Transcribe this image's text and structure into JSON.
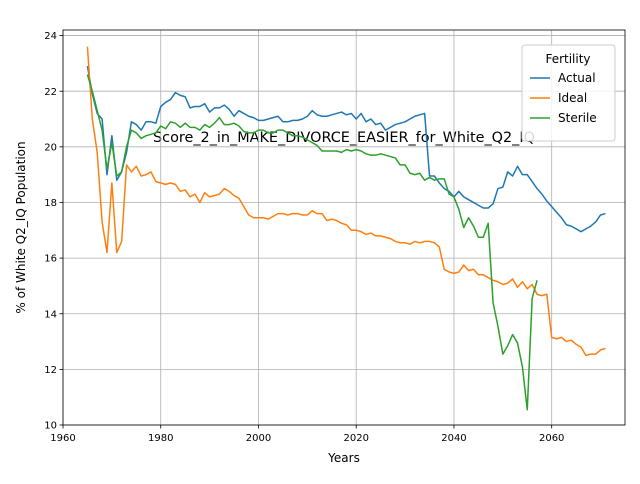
{
  "chart_data": {
    "type": "line",
    "title": "Score_2_in_MAKE_DIVORCE_EASIER_for_White_Q2_IQ",
    "xlabel": "Years",
    "ylabel": "% of White Q2_IQ Population",
    "xlim": [
      1960,
      2075
    ],
    "ylim": [
      10,
      24.2
    ],
    "xticks": [
      1960,
      1980,
      2000,
      2020,
      2040,
      2060
    ],
    "yticks": [
      10,
      12,
      14,
      16,
      18,
      20,
      22,
      24
    ],
    "grid": true,
    "legend": {
      "title": "Fertility",
      "position": "top-right"
    },
    "series": [
      {
        "name": "Actual",
        "color": "#1f77b4",
        "points": [
          [
            1965,
            22.9
          ],
          [
            1966,
            21.9
          ],
          [
            1967,
            21.2
          ],
          [
            1968,
            21.0
          ],
          [
            1969,
            19.0
          ],
          [
            1970,
            20.4
          ],
          [
            1971,
            18.8
          ],
          [
            1972,
            19.1
          ],
          [
            1973,
            19.8
          ],
          [
            1974,
            20.9
          ],
          [
            1975,
            20.8
          ],
          [
            1976,
            20.6
          ],
          [
            1977,
            20.9
          ],
          [
            1978,
            20.9
          ],
          [
            1979,
            20.85
          ],
          [
            1980,
            21.45
          ],
          [
            1981,
            21.6
          ],
          [
            1982,
            21.7
          ],
          [
            1983,
            21.95
          ],
          [
            1984,
            21.85
          ],
          [
            1985,
            21.8
          ],
          [
            1986,
            21.4
          ],
          [
            1987,
            21.45
          ],
          [
            1988,
            21.45
          ],
          [
            1989,
            21.55
          ],
          [
            1990,
            21.25
          ],
          [
            1991,
            21.4
          ],
          [
            1992,
            21.4
          ],
          [
            1993,
            21.5
          ],
          [
            1994,
            21.35
          ],
          [
            1995,
            21.1
          ],
          [
            1996,
            21.3
          ],
          [
            1997,
            21.2
          ],
          [
            1998,
            21.1
          ],
          [
            1999,
            21.05
          ],
          [
            2000,
            20.95
          ],
          [
            2001,
            20.95
          ],
          [
            2002,
            21.0
          ],
          [
            2003,
            21.05
          ],
          [
            2004,
            21.1
          ],
          [
            2005,
            20.9
          ],
          [
            2006,
            20.9
          ],
          [
            2007,
            20.95
          ],
          [
            2008,
            20.95
          ],
          [
            2009,
            21.0
          ],
          [
            2010,
            21.1
          ],
          [
            2011,
            21.3
          ],
          [
            2012,
            21.15
          ],
          [
            2013,
            21.1
          ],
          [
            2014,
            21.1
          ],
          [
            2015,
            21.15
          ],
          [
            2016,
            21.2
          ],
          [
            2017,
            21.25
          ],
          [
            2018,
            21.15
          ],
          [
            2019,
            21.2
          ],
          [
            2020,
            21.0
          ],
          [
            2021,
            21.2
          ],
          [
            2022,
            20.9
          ],
          [
            2023,
            21.0
          ],
          [
            2024,
            20.8
          ],
          [
            2025,
            20.85
          ],
          [
            2026,
            20.6
          ],
          [
            2027,
            20.7
          ],
          [
            2028,
            20.8
          ],
          [
            2029,
            20.85
          ],
          [
            2030,
            20.9
          ],
          [
            2031,
            21.0
          ],
          [
            2032,
            21.1
          ],
          [
            2033,
            21.15
          ],
          [
            2034,
            21.2
          ],
          [
            2035,
            18.95
          ],
          [
            2036,
            18.95
          ],
          [
            2037,
            18.7
          ],
          [
            2038,
            18.5
          ],
          [
            2039,
            18.4
          ],
          [
            2040,
            18.2
          ],
          [
            2041,
            18.4
          ],
          [
            2042,
            18.2
          ],
          [
            2043,
            18.1
          ],
          [
            2044,
            18.0
          ],
          [
            2045,
            17.9
          ],
          [
            2046,
            17.8
          ],
          [
            2047,
            17.8
          ],
          [
            2048,
            17.95
          ],
          [
            2049,
            18.5
          ],
          [
            2050,
            18.55
          ],
          [
            2051,
            19.1
          ],
          [
            2052,
            18.95
          ],
          [
            2053,
            19.3
          ],
          [
            2054,
            19.0
          ],
          [
            2055,
            19.0
          ],
          [
            2056,
            18.75
          ],
          [
            2057,
            18.5
          ],
          [
            2058,
            18.3
          ],
          [
            2059,
            18.05
          ],
          [
            2060,
            17.85
          ],
          [
            2061,
            17.65
          ],
          [
            2062,
            17.45
          ],
          [
            2063,
            17.2
          ],
          [
            2064,
            17.15
          ],
          [
            2065,
            17.05
          ],
          [
            2066,
            16.95
          ],
          [
            2067,
            17.05
          ],
          [
            2068,
            17.15
          ],
          [
            2069,
            17.3
          ],
          [
            2070,
            17.55
          ],
          [
            2071,
            17.6
          ]
        ]
      },
      {
        "name": "Ideal",
        "color": "#ff7f0e",
        "points": [
          [
            1965,
            23.6
          ],
          [
            1966,
            21.0
          ],
          [
            1967,
            19.8
          ],
          [
            1968,
            17.3
          ],
          [
            1969,
            16.2
          ],
          [
            1970,
            18.7
          ],
          [
            1971,
            16.2
          ],
          [
            1972,
            16.6
          ],
          [
            1973,
            19.35
          ],
          [
            1974,
            19.1
          ],
          [
            1975,
            19.3
          ],
          [
            1976,
            18.95
          ],
          [
            1977,
            19.0
          ],
          [
            1978,
            19.1
          ],
          [
            1979,
            18.75
          ],
          [
            1980,
            18.7
          ],
          [
            1981,
            18.65
          ],
          [
            1982,
            18.7
          ],
          [
            1983,
            18.65
          ],
          [
            1984,
            18.4
          ],
          [
            1985,
            18.45
          ],
          [
            1986,
            18.2
          ],
          [
            1987,
            18.3
          ],
          [
            1988,
            18.0
          ],
          [
            1989,
            18.35
          ],
          [
            1990,
            18.2
          ],
          [
            1991,
            18.25
          ],
          [
            1992,
            18.3
          ],
          [
            1993,
            18.5
          ],
          [
            1994,
            18.4
          ],
          [
            1995,
            18.25
          ],
          [
            1996,
            18.15
          ],
          [
            1997,
            17.85
          ],
          [
            1998,
            17.55
          ],
          [
            1999,
            17.45
          ],
          [
            2000,
            17.45
          ],
          [
            2001,
            17.45
          ],
          [
            2002,
            17.4
          ],
          [
            2003,
            17.5
          ],
          [
            2004,
            17.6
          ],
          [
            2005,
            17.6
          ],
          [
            2006,
            17.55
          ],
          [
            2007,
            17.6
          ],
          [
            2008,
            17.6
          ],
          [
            2009,
            17.55
          ],
          [
            2010,
            17.55
          ],
          [
            2011,
            17.7
          ],
          [
            2012,
            17.6
          ],
          [
            2013,
            17.6
          ],
          [
            2014,
            17.35
          ],
          [
            2015,
            17.4
          ],
          [
            2016,
            17.35
          ],
          [
            2017,
            17.25
          ],
          [
            2018,
            17.2
          ],
          [
            2019,
            17.0
          ],
          [
            2020,
            17.0
          ],
          [
            2021,
            16.95
          ],
          [
            2022,
            16.85
          ],
          [
            2023,
            16.9
          ],
          [
            2024,
            16.8
          ],
          [
            2025,
            16.8
          ],
          [
            2026,
            16.75
          ],
          [
            2027,
            16.7
          ],
          [
            2028,
            16.6
          ],
          [
            2029,
            16.55
          ],
          [
            2030,
            16.55
          ],
          [
            2031,
            16.5
          ],
          [
            2032,
            16.6
          ],
          [
            2033,
            16.55
          ],
          [
            2034,
            16.6
          ],
          [
            2035,
            16.6
          ],
          [
            2036,
            16.55
          ],
          [
            2037,
            16.4
          ],
          [
            2038,
            15.6
          ],
          [
            2039,
            15.5
          ],
          [
            2040,
            15.45
          ],
          [
            2041,
            15.5
          ],
          [
            2042,
            15.75
          ],
          [
            2043,
            15.55
          ],
          [
            2044,
            15.6
          ],
          [
            2045,
            15.4
          ],
          [
            2046,
            15.4
          ],
          [
            2047,
            15.3
          ],
          [
            2048,
            15.2
          ],
          [
            2049,
            15.15
          ],
          [
            2050,
            15.05
          ],
          [
            2051,
            15.1
          ],
          [
            2052,
            15.25
          ],
          [
            2053,
            14.95
          ],
          [
            2054,
            15.15
          ],
          [
            2055,
            14.9
          ],
          [
            2056,
            15.05
          ],
          [
            2057,
            14.7
          ],
          [
            2058,
            14.65
          ],
          [
            2059,
            14.7
          ],
          [
            2060,
            13.15
          ],
          [
            2061,
            13.1
          ],
          [
            2062,
            13.15
          ],
          [
            2063,
            13.0
          ],
          [
            2064,
            13.05
          ],
          [
            2065,
            12.9
          ],
          [
            2066,
            12.8
          ],
          [
            2067,
            12.5
          ],
          [
            2068,
            12.55
          ],
          [
            2069,
            12.55
          ],
          [
            2070,
            12.7
          ],
          [
            2071,
            12.75
          ]
        ]
      },
      {
        "name": "Sterile",
        "color": "#2ca02c",
        "points": [
          [
            1965,
            22.6
          ],
          [
            1966,
            22.0
          ],
          [
            1967,
            21.3
          ],
          [
            1968,
            20.6
          ],
          [
            1969,
            19.2
          ],
          [
            1970,
            20.15
          ],
          [
            1971,
            18.95
          ],
          [
            1972,
            19.1
          ],
          [
            1973,
            20.0
          ],
          [
            1974,
            20.6
          ],
          [
            1975,
            20.5
          ],
          [
            1976,
            20.3
          ],
          [
            1977,
            20.4
          ],
          [
            1978,
            20.45
          ],
          [
            1979,
            20.5
          ],
          [
            1980,
            20.75
          ],
          [
            1981,
            20.65
          ],
          [
            1982,
            20.9
          ],
          [
            1983,
            20.85
          ],
          [
            1984,
            20.7
          ],
          [
            1985,
            20.85
          ],
          [
            1986,
            20.7
          ],
          [
            1987,
            20.7
          ],
          [
            1988,
            20.6
          ],
          [
            1989,
            20.8
          ],
          [
            1990,
            20.7
          ],
          [
            1991,
            20.85
          ],
          [
            1992,
            21.05
          ],
          [
            1993,
            20.8
          ],
          [
            1994,
            20.8
          ],
          [
            1995,
            20.85
          ],
          [
            1996,
            20.75
          ],
          [
            1997,
            20.55
          ],
          [
            1998,
            20.5
          ],
          [
            1999,
            20.5
          ],
          [
            2000,
            20.6
          ],
          [
            2001,
            20.6
          ],
          [
            2002,
            20.5
          ],
          [
            2003,
            20.5
          ],
          [
            2004,
            20.6
          ],
          [
            2005,
            20.6
          ],
          [
            2006,
            20.5
          ],
          [
            2007,
            20.4
          ],
          [
            2008,
            20.4
          ],
          [
            2009,
            20.35
          ],
          [
            2010,
            20.25
          ],
          [
            2011,
            20.15
          ],
          [
            2012,
            20.05
          ],
          [
            2013,
            19.85
          ],
          [
            2014,
            19.85
          ],
          [
            2015,
            19.85
          ],
          [
            2016,
            19.85
          ],
          [
            2017,
            19.8
          ],
          [
            2018,
            19.9
          ],
          [
            2019,
            19.85
          ],
          [
            2020,
            19.9
          ],
          [
            2021,
            19.85
          ],
          [
            2022,
            19.75
          ],
          [
            2023,
            19.7
          ],
          [
            2024,
            19.7
          ],
          [
            2025,
            19.75
          ],
          [
            2026,
            19.7
          ],
          [
            2027,
            19.65
          ],
          [
            2028,
            19.6
          ],
          [
            2029,
            19.35
          ],
          [
            2030,
            19.35
          ],
          [
            2031,
            19.05
          ],
          [
            2032,
            19.0
          ],
          [
            2033,
            19.05
          ],
          [
            2034,
            18.8
          ],
          [
            2035,
            18.9
          ],
          [
            2036,
            18.8
          ],
          [
            2037,
            18.85
          ],
          [
            2038,
            18.85
          ],
          [
            2039,
            18.3
          ],
          [
            2040,
            18.2
          ],
          [
            2041,
            17.75
          ],
          [
            2042,
            17.1
          ],
          [
            2043,
            17.45
          ],
          [
            2044,
            17.15
          ],
          [
            2045,
            16.75
          ],
          [
            2046,
            16.75
          ],
          [
            2047,
            17.25
          ],
          [
            2048,
            14.4
          ],
          [
            2049,
            13.55
          ],
          [
            2050,
            12.55
          ],
          [
            2051,
            12.85
          ],
          [
            2052,
            13.25
          ],
          [
            2053,
            12.95
          ],
          [
            2054,
            12.1
          ],
          [
            2055,
            10.55
          ],
          [
            2056,
            14.55
          ],
          [
            2057,
            15.2
          ]
        ]
      }
    ]
  }
}
